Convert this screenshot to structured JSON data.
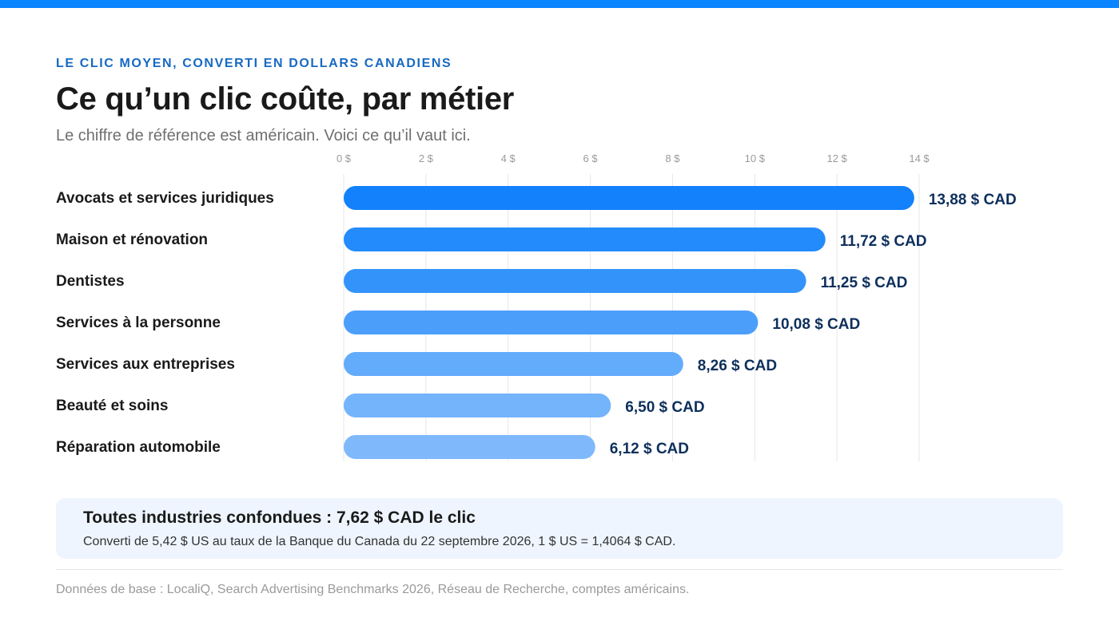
{
  "header": {
    "eyebrow": "LE CLIC MOYEN, CONVERTI EN DOLLARS CANADIENS",
    "title": "Ce qu’un clic coûte, par métier",
    "subtitle": "Le chiffre de référence est américain. Voici ce qu’il vaut ici."
  },
  "colors": {
    "accent_bar": "#0a84ff",
    "eyebrow": "#1769c2",
    "value_text": "#0d2f5c",
    "bars_gradient": [
      "#1281fb",
      "#238bfb",
      "#3393fb",
      "#4c9efb",
      "#63abfb",
      "#74b4fb",
      "#7fb9fb"
    ]
  },
  "chart_data": {
    "type": "bar",
    "orientation": "horizontal",
    "categories": [
      "Avocats et services juridiques",
      "Maison et rénovation",
      "Dentistes",
      "Services à la personne",
      "Services aux entreprises",
      "Beauté et soins",
      "Réparation automobile"
    ],
    "values": [
      13.88,
      11.72,
      11.25,
      10.08,
      8.26,
      6.5,
      6.12
    ],
    "value_labels": [
      "13,88 $ CAD",
      "11,72 $ CAD",
      "11,25 $ CAD",
      "10,08 $ CAD",
      "8,26 $ CAD",
      "6,50 $ CAD",
      "6,12 $ CAD"
    ],
    "ticks": [
      0,
      2,
      4,
      6,
      8,
      10,
      12,
      14
    ],
    "tick_labels": [
      "0 $",
      "2 $",
      "4 $",
      "6 $",
      "8 $",
      "10 $",
      "12 $",
      "14 $"
    ],
    "xlim": [
      0,
      14
    ],
    "grid": true,
    "axis_position": "top"
  },
  "summary": {
    "headline": "Toutes industries confondues : 7,62 $ CAD le clic",
    "note": "Converti de 5,42 $ US au taux de la Banque du Canada du 22 septembre 2026, 1 $ US = 1,4064 $ CAD."
  },
  "footer": {
    "source": "Données de base : LocaliQ, Search Advertising Benchmarks 2026, Réseau de Recherche, comptes américains."
  }
}
